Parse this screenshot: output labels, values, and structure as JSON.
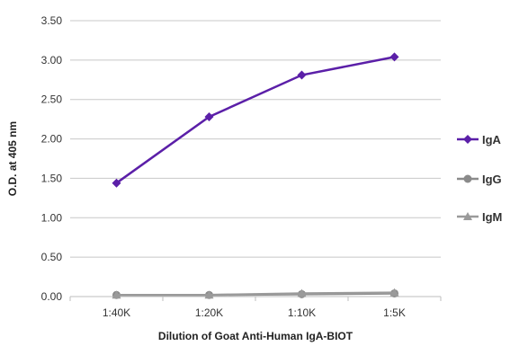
{
  "chart_data": {
    "type": "line",
    "xlabel": "Dilution of Goat Anti-Human IgA-BIOT",
    "ylabel": "O.D. at 405 nm",
    "categories": [
      "1:40K",
      "1:20K",
      "1:10K",
      "1:5K"
    ],
    "ylim": [
      0,
      3.5
    ],
    "yticks": [
      "0.00",
      "0.50",
      "1.00",
      "1.50",
      "2.00",
      "2.50",
      "3.00",
      "3.50"
    ],
    "grid": "horizontal",
    "legend_position": "right",
    "series": [
      {
        "name": "IgA",
        "values": [
          1.44,
          2.28,
          2.81,
          3.04
        ],
        "color": "#5b1fa8",
        "marker": "diamond"
      },
      {
        "name": "IgG",
        "values": [
          0.02,
          0.02,
          0.03,
          0.04
        ],
        "color": "#8a8a8a",
        "marker": "circle"
      },
      {
        "name": "IgM",
        "values": [
          0.02,
          0.02,
          0.04,
          0.05
        ],
        "color": "#9a9a9a",
        "marker": "triangle"
      }
    ]
  }
}
